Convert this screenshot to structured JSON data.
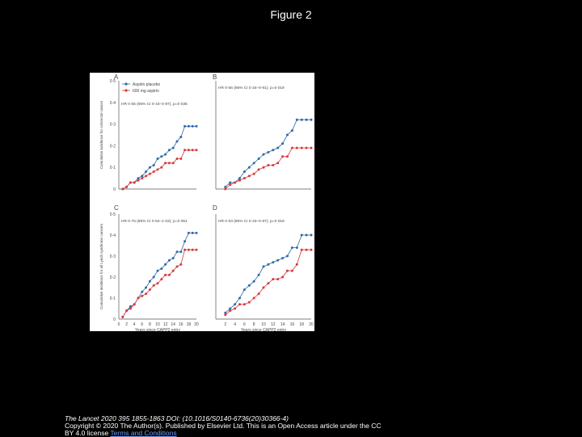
{
  "page_title": "Figure 2",
  "caption": {
    "journal": "The Lancet 2020 395 1855-1863 DOI: (10.1016/S0140-6736(20)30366-4)",
    "copyright": "Copyright © 2020 The Author(s). Published by Elsevier Ltd. This is an Open Access article under the CC",
    "license_prefix": "BY 4.0 license",
    "link_text": "Terms and Conditions"
  },
  "colors": {
    "blue": "#2f6aa8",
    "red": "#d8393a",
    "axis": "#555555",
    "text": "#444444"
  },
  "chart_data": [
    {
      "panel": "A",
      "type": "line",
      "ylabel": "Cumulative incidence for colorectal cancer",
      "xlabel": "",
      "annotation": "HR 0·55 (95% CI 0·43–0·97); p=0·035",
      "legend": [
        "Aspirin placebo",
        "600 mg aspirin"
      ],
      "yticks": [
        "0",
        "0·1",
        "0·2",
        "0·3",
        "0·4",
        "0·5"
      ],
      "xticks": [],
      "ylim": [
        0,
        0.5
      ],
      "xlim": [
        0,
        20
      ],
      "series": [
        {
          "name": "Aspirin placebo",
          "color": "blue",
          "x": [
            1,
            2,
            3,
            4,
            5,
            6,
            7,
            8,
            9,
            10,
            11,
            12,
            13,
            14,
            15,
            16,
            17,
            18,
            19,
            20
          ],
          "y": [
            0,
            0.01,
            0.03,
            0.03,
            0.05,
            0.06,
            0.08,
            0.1,
            0.11,
            0.14,
            0.15,
            0.16,
            0.18,
            0.19,
            0.22,
            0.24,
            0.29,
            0.29,
            0.29,
            0.29
          ]
        },
        {
          "name": "600 mg aspirin",
          "color": "red",
          "x": [
            1,
            2,
            3,
            4,
            5,
            6,
            7,
            8,
            9,
            10,
            11,
            12,
            13,
            14,
            15,
            16,
            17,
            18,
            19,
            20
          ],
          "y": [
            0,
            0.01,
            0.03,
            0.03,
            0.04,
            0.05,
            0.06,
            0.07,
            0.08,
            0.09,
            0.1,
            0.12,
            0.12,
            0.12,
            0.14,
            0.14,
            0.18,
            0.18,
            0.18,
            0.18
          ]
        }
      ]
    },
    {
      "panel": "B",
      "type": "line",
      "ylabel": "",
      "xlabel": "",
      "annotation": "HR 0·56 (95% CI 0·34–0·91); p=0·019",
      "legend": [],
      "yticks": [],
      "xticks": [],
      "ylim": [
        0,
        0.5
      ],
      "xlim": [
        0,
        20
      ],
      "series": [
        {
          "name": "Aspirin placebo",
          "color": "blue",
          "x": [
            2,
            3,
            4,
            5,
            6,
            7,
            8,
            9,
            10,
            11,
            12,
            13,
            14,
            15,
            16,
            17,
            18,
            19,
            20
          ],
          "y": [
            0.01,
            0.03,
            0.03,
            0.05,
            0.08,
            0.1,
            0.12,
            0.14,
            0.16,
            0.17,
            0.18,
            0.19,
            0.21,
            0.25,
            0.27,
            0.32,
            0.32,
            0.32,
            0.32
          ]
        },
        {
          "name": "600 mg aspirin",
          "color": "red",
          "x": [
            2,
            3,
            4,
            5,
            6,
            7,
            8,
            9,
            10,
            11,
            12,
            13,
            14,
            15,
            16,
            17,
            18,
            19,
            20
          ],
          "y": [
            0,
            0.02,
            0.03,
            0.04,
            0.05,
            0.06,
            0.07,
            0.09,
            0.1,
            0.11,
            0.11,
            0.12,
            0.15,
            0.15,
            0.19,
            0.19,
            0.19,
            0.19,
            0.19
          ]
        }
      ]
    },
    {
      "panel": "C",
      "type": "line",
      "ylabel": "Cumulative incidence for all Lynch syndrome cancers",
      "xlabel": "Years since CAPP2 entry",
      "annotation": "HR 0·76 (95% CI 0·54–1·03); p=0·061",
      "legend": [],
      "yticks": [
        "0",
        "0·1",
        "0·2",
        "0·3",
        "0·4",
        "0·5"
      ],
      "xticks": [
        "0",
        "2",
        "4",
        "6",
        "8",
        "10",
        "12",
        "14",
        "16",
        "18",
        "20"
      ],
      "ylim": [
        0,
        0.5
      ],
      "xlim": [
        0,
        20
      ],
      "series": [
        {
          "name": "Aspirin placebo",
          "color": "blue",
          "x": [
            1,
            2,
            3,
            4,
            5,
            6,
            7,
            8,
            9,
            10,
            11,
            12,
            13,
            14,
            15,
            16,
            17,
            18,
            19,
            20
          ],
          "y": [
            0.01,
            0.04,
            0.06,
            0.07,
            0.1,
            0.13,
            0.15,
            0.18,
            0.2,
            0.23,
            0.24,
            0.26,
            0.28,
            0.29,
            0.32,
            0.32,
            0.37,
            0.41,
            0.41,
            0.41
          ]
        },
        {
          "name": "600 mg aspirin",
          "color": "red",
          "x": [
            1,
            2,
            3,
            4,
            5,
            6,
            7,
            8,
            9,
            10,
            11,
            12,
            13,
            14,
            15,
            16,
            17,
            18,
            19,
            20
          ],
          "y": [
            0.01,
            0.04,
            0.05,
            0.07,
            0.1,
            0.11,
            0.12,
            0.14,
            0.16,
            0.17,
            0.19,
            0.21,
            0.21,
            0.23,
            0.25,
            0.26,
            0.33,
            0.33,
            0.33,
            0.33
          ]
        }
      ]
    },
    {
      "panel": "D",
      "type": "line",
      "ylabel": "",
      "xlabel": "Years since CAPP2 entry",
      "annotation": "HR 0·63 (95% CI 0·43–0·97); p=0·018",
      "legend": [],
      "yticks": [],
      "xticks": [
        "2",
        "4",
        "6",
        "8",
        "10",
        "12",
        "14",
        "16",
        "18",
        "20"
      ],
      "ylim": [
        0,
        0.5
      ],
      "xlim": [
        0,
        20
      ],
      "series": [
        {
          "name": "Aspirin placebo",
          "color": "blue",
          "x": [
            2,
            3,
            4,
            5,
            6,
            7,
            8,
            9,
            10,
            11,
            12,
            13,
            14,
            15,
            16,
            17,
            18,
            19,
            20
          ],
          "y": [
            0.03,
            0.05,
            0.07,
            0.1,
            0.14,
            0.16,
            0.18,
            0.21,
            0.25,
            0.26,
            0.27,
            0.28,
            0.29,
            0.3,
            0.34,
            0.34,
            0.4,
            0.4,
            0.4
          ]
        },
        {
          "name": "600 mg aspirin",
          "color": "red",
          "x": [
            2,
            3,
            4,
            5,
            6,
            7,
            8,
            9,
            10,
            11,
            12,
            13,
            14,
            15,
            16,
            17,
            18,
            19,
            20
          ],
          "y": [
            0.02,
            0.04,
            0.05,
            0.07,
            0.07,
            0.08,
            0.1,
            0.12,
            0.15,
            0.17,
            0.19,
            0.19,
            0.2,
            0.23,
            0.23,
            0.26,
            0.33,
            0.33,
            0.33
          ]
        }
      ]
    }
  ]
}
